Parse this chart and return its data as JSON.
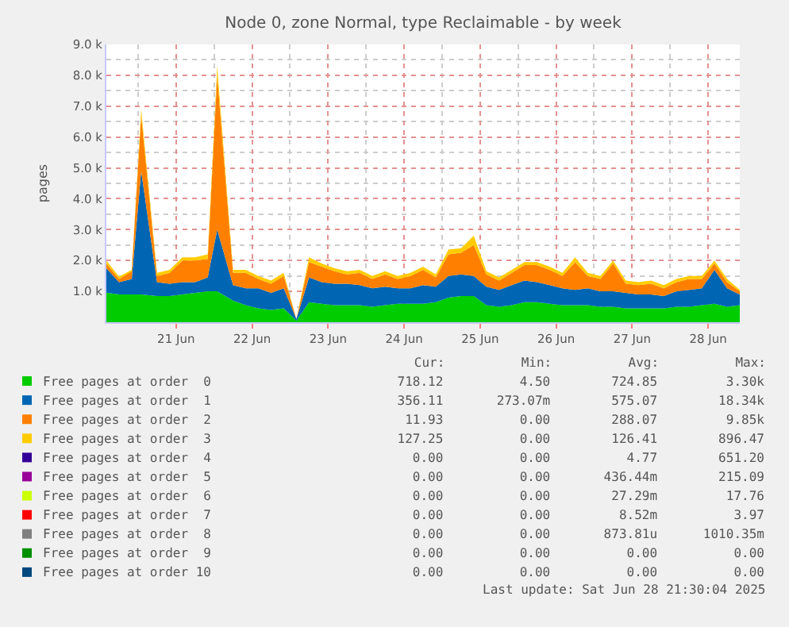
{
  "chart_data": {
    "type": "area",
    "stacked": true,
    "title": "Node 0, zone Normal, type Reclaimable - by week",
    "ylabel": "pages",
    "x": [
      "2025-06-20T02:00",
      "2025-06-20T06:00",
      "2025-06-20T10:00",
      "2025-06-20T13:00",
      "2025-06-20T18:00",
      "2025-06-20T22:00",
      "2025-06-21T02:00",
      "2025-06-21T06:00",
      "2025-06-21T10:00",
      "2025-06-21T13:00",
      "2025-06-21T18:00",
      "2025-06-21T22:00",
      "2025-06-22T02:00",
      "2025-06-22T06:00",
      "2025-06-22T10:00",
      "2025-06-22T14:00",
      "2025-06-22T18:00",
      "2025-06-22T22:00",
      "2025-06-23T02:00",
      "2025-06-23T06:00",
      "2025-06-23T10:00",
      "2025-06-23T14:00",
      "2025-06-23T18:00",
      "2025-06-23T22:00",
      "2025-06-24T02:00",
      "2025-06-24T06:00",
      "2025-06-24T10:00",
      "2025-06-24T14:00",
      "2025-06-24T18:00",
      "2025-06-24T22:00",
      "2025-06-25T02:00",
      "2025-06-25T06:00",
      "2025-06-25T10:00",
      "2025-06-25T14:00",
      "2025-06-25T18:00",
      "2025-06-25T22:00",
      "2025-06-26T02:00",
      "2025-06-26T06:00",
      "2025-06-26T10:00",
      "2025-06-26T14:00",
      "2025-06-26T18:00",
      "2025-06-26T22:00",
      "2025-06-27T02:00",
      "2025-06-27T06:00",
      "2025-06-27T10:00",
      "2025-06-27T14:00",
      "2025-06-27T18:00",
      "2025-06-27T22:00",
      "2025-06-28T02:00",
      "2025-06-28T06:00",
      "2025-06-28T10:00"
    ],
    "xlim": [
      "2025-06-20T02:00",
      "2025-06-28T10:00"
    ],
    "xticks": [
      {
        "value": "2025-06-21",
        "label": "21 Jun"
      },
      {
        "value": "2025-06-22",
        "label": "22 Jun"
      },
      {
        "value": "2025-06-23",
        "label": "23 Jun"
      },
      {
        "value": "2025-06-24",
        "label": "24 Jun"
      },
      {
        "value": "2025-06-25",
        "label": "25 Jun"
      },
      {
        "value": "2025-06-26",
        "label": "26 Jun"
      },
      {
        "value": "2025-06-27",
        "label": "27 Jun"
      },
      {
        "value": "2025-06-28",
        "label": "28 Jun"
      }
    ],
    "ylim": [
      0,
      9000
    ],
    "yticks": [
      {
        "value": 1000,
        "label": "1.0 k"
      },
      {
        "value": 2000,
        "label": "2.0 k"
      },
      {
        "value": 3000,
        "label": "3.0 k"
      },
      {
        "value": 4000,
        "label": "4.0 k"
      },
      {
        "value": 5000,
        "label": "5.0 k"
      },
      {
        "value": 6000,
        "label": "6.0 k"
      },
      {
        "value": 7000,
        "label": "7.0 k"
      },
      {
        "value": 8000,
        "label": "8.0 k"
      },
      {
        "value": 9000,
        "label": "9.0 k"
      }
    ],
    "grid": true,
    "legend": "bottom left",
    "series": [
      {
        "name": "Free pages at order  0",
        "color": "#00cc00",
        "values": [
          960,
          900,
          900,
          900,
          850,
          850,
          900,
          950,
          1000,
          1000,
          700,
          550,
          450,
          400,
          450,
          50,
          650,
          600,
          550,
          550,
          550,
          500,
          550,
          600,
          600,
          600,
          650,
          800,
          850,
          850,
          550,
          500,
          550,
          650,
          650,
          600,
          550,
          550,
          550,
          500,
          500,
          450,
          450,
          450,
          450,
          500,
          500,
          550,
          600,
          500,
          550
        ]
      },
      {
        "name": "Free pages at order  1",
        "color": "#0066b3",
        "values": [
          790,
          400,
          500,
          4000,
          450,
          400,
          400,
          350,
          450,
          2000,
          500,
          550,
          650,
          550,
          650,
          50,
          800,
          700,
          700,
          700,
          650,
          600,
          600,
          500,
          500,
          600,
          500,
          700,
          700,
          650,
          600,
          550,
          650,
          700,
          650,
          600,
          550,
          500,
          550,
          500,
          500,
          500,
          450,
          450,
          400,
          500,
          550,
          550,
          1100,
          600,
          350
        ]
      },
      {
        "name": "Free pages at order  2",
        "color": "#ff8000",
        "values": [
          150,
          100,
          250,
          1800,
          200,
          350,
          700,
          700,
          600,
          5000,
          400,
          500,
          300,
          300,
          400,
          0,
          500,
          500,
          400,
          300,
          400,
          300,
          400,
          300,
          400,
          500,
          300,
          700,
          700,
          1000,
          400,
          300,
          400,
          500,
          550,
          500,
          400,
          900,
          400,
          400,
          900,
          300,
          300,
          350,
          250,
          300,
          350,
          300,
          200,
          200,
          100
        ]
      },
      {
        "name": "Free pages at order  3",
        "color": "#ffcc00",
        "values": [
          100,
          80,
          50,
          200,
          100,
          100,
          100,
          100,
          150,
          300,
          100,
          100,
          100,
          100,
          100,
          0,
          150,
          100,
          100,
          100,
          100,
          100,
          100,
          100,
          100,
          100,
          100,
          150,
          150,
          300,
          100,
          100,
          100,
          100,
          100,
          100,
          100,
          150,
          100,
          100,
          100,
          100,
          100,
          100,
          100,
          100,
          100,
          100,
          100,
          100,
          50
        ]
      },
      {
        "name": "Free pages at order  4",
        "color": "#330099",
        "values": [
          null,
          null,
          null,
          null,
          null,
          null,
          null,
          null,
          null,
          null,
          null,
          null,
          null,
          null,
          null,
          null,
          null,
          null,
          null,
          null,
          null,
          null,
          null,
          null,
          null,
          null,
          null,
          null,
          null,
          null,
          null,
          null,
          null,
          null,
          null,
          null,
          null,
          null,
          null,
          null,
          null,
          null,
          null,
          null,
          null,
          null,
          null,
          null,
          null,
          null,
          null
        ]
      },
      {
        "name": "Free pages at order  5",
        "color": "#990099",
        "values": [
          null,
          null,
          null,
          null,
          null,
          null,
          null,
          null,
          null,
          null,
          null,
          null,
          null,
          null,
          null,
          null,
          null,
          null,
          null,
          null,
          null,
          null,
          null,
          null,
          null,
          null,
          null,
          null,
          null,
          null,
          null,
          null,
          null,
          null,
          null,
          null,
          null,
          null,
          null,
          null,
          null,
          null,
          null,
          null,
          null,
          null,
          null,
          null,
          null,
          null,
          null
        ]
      },
      {
        "name": "Free pages at order  6",
        "color": "#ccff00",
        "values": [
          null,
          null,
          null,
          null,
          null,
          null,
          null,
          null,
          null,
          null,
          null,
          null,
          null,
          null,
          null,
          null,
          null,
          null,
          null,
          null,
          null,
          null,
          null,
          null,
          null,
          null,
          null,
          null,
          null,
          null,
          null,
          null,
          null,
          null,
          null,
          null,
          null,
          null,
          null,
          null,
          null,
          null,
          null,
          null,
          null,
          null,
          null,
          null,
          null,
          null,
          null
        ]
      },
      {
        "name": "Free pages at order  7",
        "color": "#ff0000",
        "values": [
          null,
          null,
          null,
          null,
          null,
          null,
          null,
          null,
          null,
          null,
          null,
          null,
          null,
          null,
          null,
          null,
          null,
          null,
          null,
          null,
          null,
          null,
          null,
          null,
          null,
          null,
          null,
          null,
          null,
          null,
          null,
          null,
          null,
          null,
          null,
          null,
          null,
          null,
          null,
          null,
          null,
          null,
          null,
          null,
          null,
          null,
          null,
          null,
          null,
          null,
          null
        ]
      },
      {
        "name": "Free pages at order  8",
        "color": "#808080",
        "values": [
          null,
          null,
          null,
          null,
          null,
          null,
          null,
          null,
          null,
          null,
          null,
          null,
          null,
          null,
          null,
          null,
          null,
          null,
          null,
          null,
          null,
          null,
          null,
          null,
          null,
          null,
          null,
          null,
          null,
          null,
          null,
          null,
          null,
          null,
          null,
          null,
          null,
          null,
          null,
          null,
          null,
          null,
          null,
          null,
          null,
          null,
          null,
          null,
          null,
          null,
          null
        ]
      },
      {
        "name": "Free pages at order  9",
        "color": "#008f00",
        "values": [
          null,
          null,
          null,
          null,
          null,
          null,
          null,
          null,
          null,
          null,
          null,
          null,
          null,
          null,
          null,
          null,
          null,
          null,
          null,
          null,
          null,
          null,
          null,
          null,
          null,
          null,
          null,
          null,
          null,
          null,
          null,
          null,
          null,
          null,
          null,
          null,
          null,
          null,
          null,
          null,
          null,
          null,
          null,
          null,
          null,
          null,
          null,
          null,
          null,
          null,
          null
        ]
      },
      {
        "name": "Free pages at order 10",
        "color": "#00487d",
        "values": [
          null,
          null,
          null,
          null,
          null,
          null,
          null,
          null,
          null,
          null,
          null,
          null,
          null,
          null,
          null,
          null,
          null,
          null,
          null,
          null,
          null,
          null,
          null,
          null,
          null,
          null,
          null,
          null,
          null,
          null,
          null,
          null,
          null,
          null,
          null,
          null,
          null,
          null,
          null,
          null,
          null,
          null,
          null,
          null,
          null,
          null,
          null,
          null,
          null,
          null,
          null
        ]
      }
    ],
    "annotations": [
      "      Cur:          Min:          Avg:          Max:",
      "    718.12          4.50        724.85         3.30k",
      "    356.11       273.07m        575.07        18.34k",
      "     11.93          0.00        288.07         9.85k",
      "    127.25          0.00        126.41        896.47",
      "      0.00          0.00          4.77        651.20",
      "      0.00          0.00       436.44m        215.09",
      "      0.00          0.00        27.29m         17.76",
      "      0.00          0.00         8.52m          3.97",
      "      0.00          0.00       873.81u      1010.35m",
      "      0.00          0.00          0.00          0.00",
      "      0.00          0.00          0.00          0.00",
      "Last update: Sat Jun 28 21:30:04 2025"
    ]
  }
}
